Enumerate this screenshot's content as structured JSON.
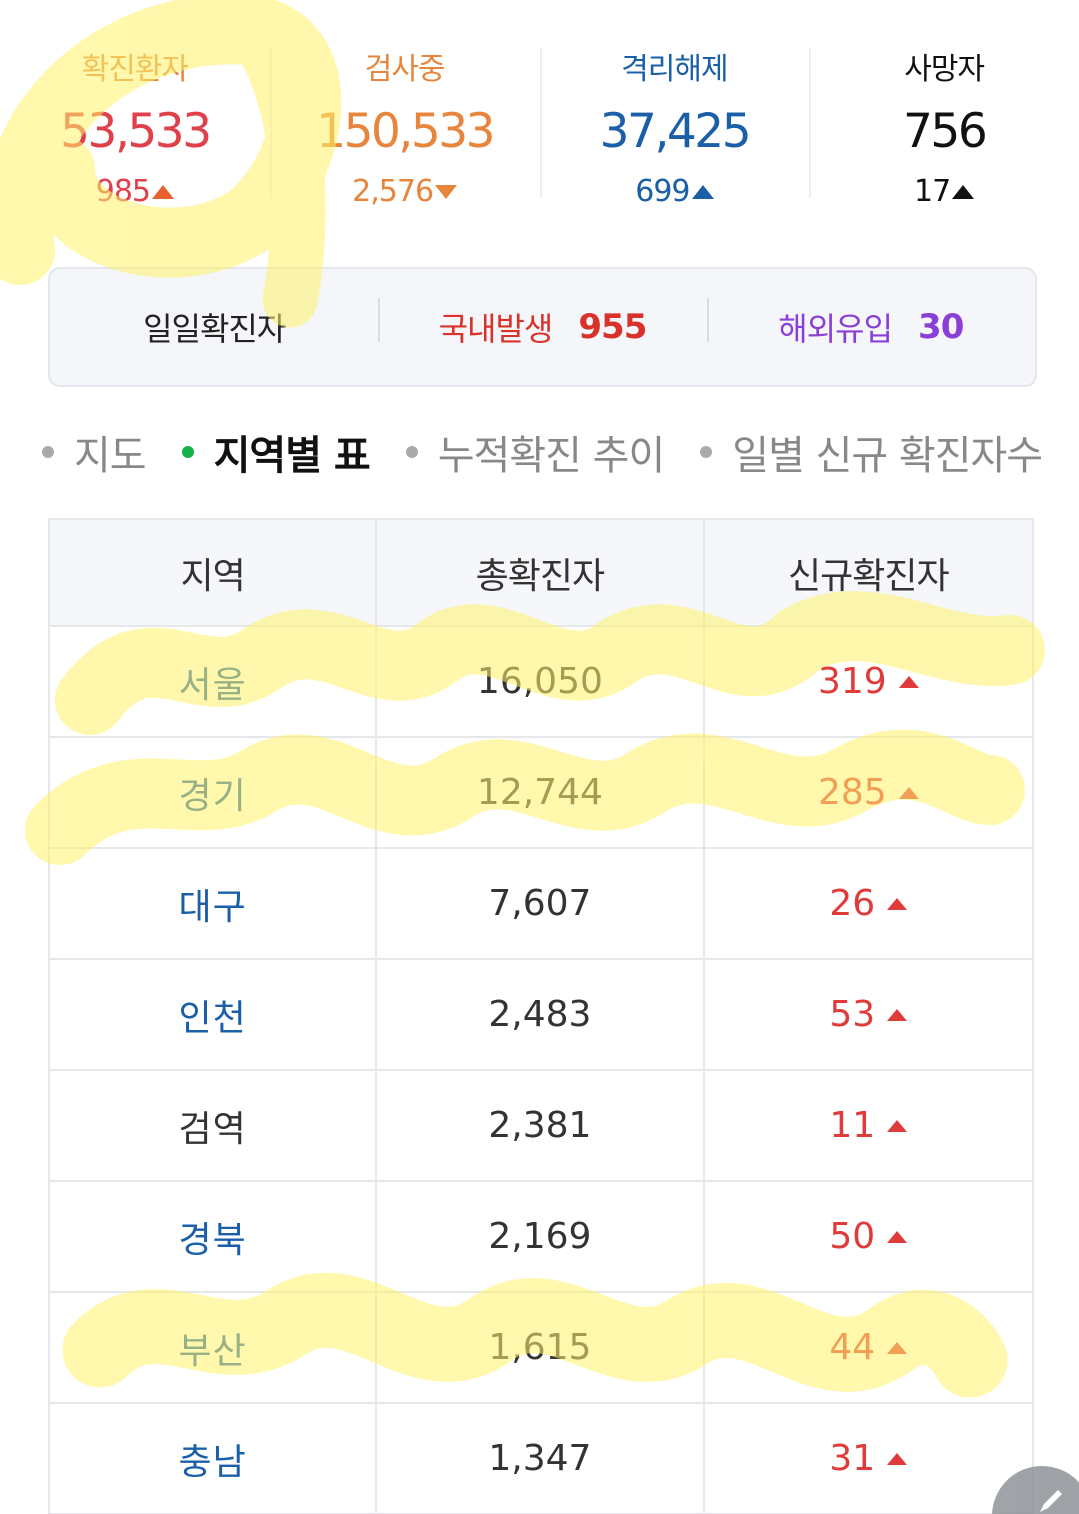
{
  "stats": [
    {
      "label": "확진환자",
      "value": "53,533",
      "delta": "985",
      "direction": "up",
      "label_color": "#e8853d",
      "value_color": "#e0404a",
      "delta_color": "#e0404a",
      "arrow_color": "#e8602c"
    },
    {
      "label": "검사중",
      "value": "150,533",
      "delta": "2,576",
      "direction": "down",
      "label_color": "#e8853d",
      "value_color": "#e8853d",
      "delta_color": "#e8853d",
      "arrow_color": "#e8853d"
    },
    {
      "label": "격리해제",
      "value": "37,425",
      "delta": "699",
      "direction": "up",
      "label_color": "#1a5fa8",
      "value_color": "#1a5fa8",
      "delta_color": "#1a5fa8",
      "arrow_color": "#1a5fa8"
    },
    {
      "label": "사망자",
      "value": "756",
      "delta": "17",
      "direction": "up",
      "label_color": "#111111",
      "value_color": "#111111",
      "delta_color": "#111111",
      "arrow_color": "#111111"
    }
  ],
  "daily": {
    "label": "일일확진자",
    "domestic_label": "국내발생",
    "domestic_value": "955",
    "overseas_label": "해외유입",
    "overseas_value": "30",
    "domestic_color": "#d8322b",
    "overseas_color": "#8a3fd6"
  },
  "tabs": [
    {
      "label": "지도",
      "active": false
    },
    {
      "label": "지역별 표",
      "active": true
    },
    {
      "label": "누적확진 추이",
      "active": false
    },
    {
      "label": "일별 신규 확진자수",
      "active": false
    }
  ],
  "table": {
    "headers": [
      "지역",
      "총확진자",
      "신규확진자"
    ],
    "rows": [
      {
        "region": "서울",
        "total": "16,050",
        "new": "319"
      },
      {
        "region": "경기",
        "total": "12,744",
        "new": "285"
      },
      {
        "region": "대구",
        "total": "7,607",
        "new": "26"
      },
      {
        "region": "인천",
        "total": "2,483",
        "new": "53"
      },
      {
        "region": "검역",
        "total": "2,381",
        "new": "11"
      },
      {
        "region": "경북",
        "total": "2,169",
        "new": "50"
      },
      {
        "region": "부산",
        "total": "1,615",
        "new": "44"
      },
      {
        "region": "충남",
        "total": "1,347",
        "new": "31"
      }
    ]
  },
  "fab_icon": "pencil-icon",
  "highlight_color": "#fff36a"
}
